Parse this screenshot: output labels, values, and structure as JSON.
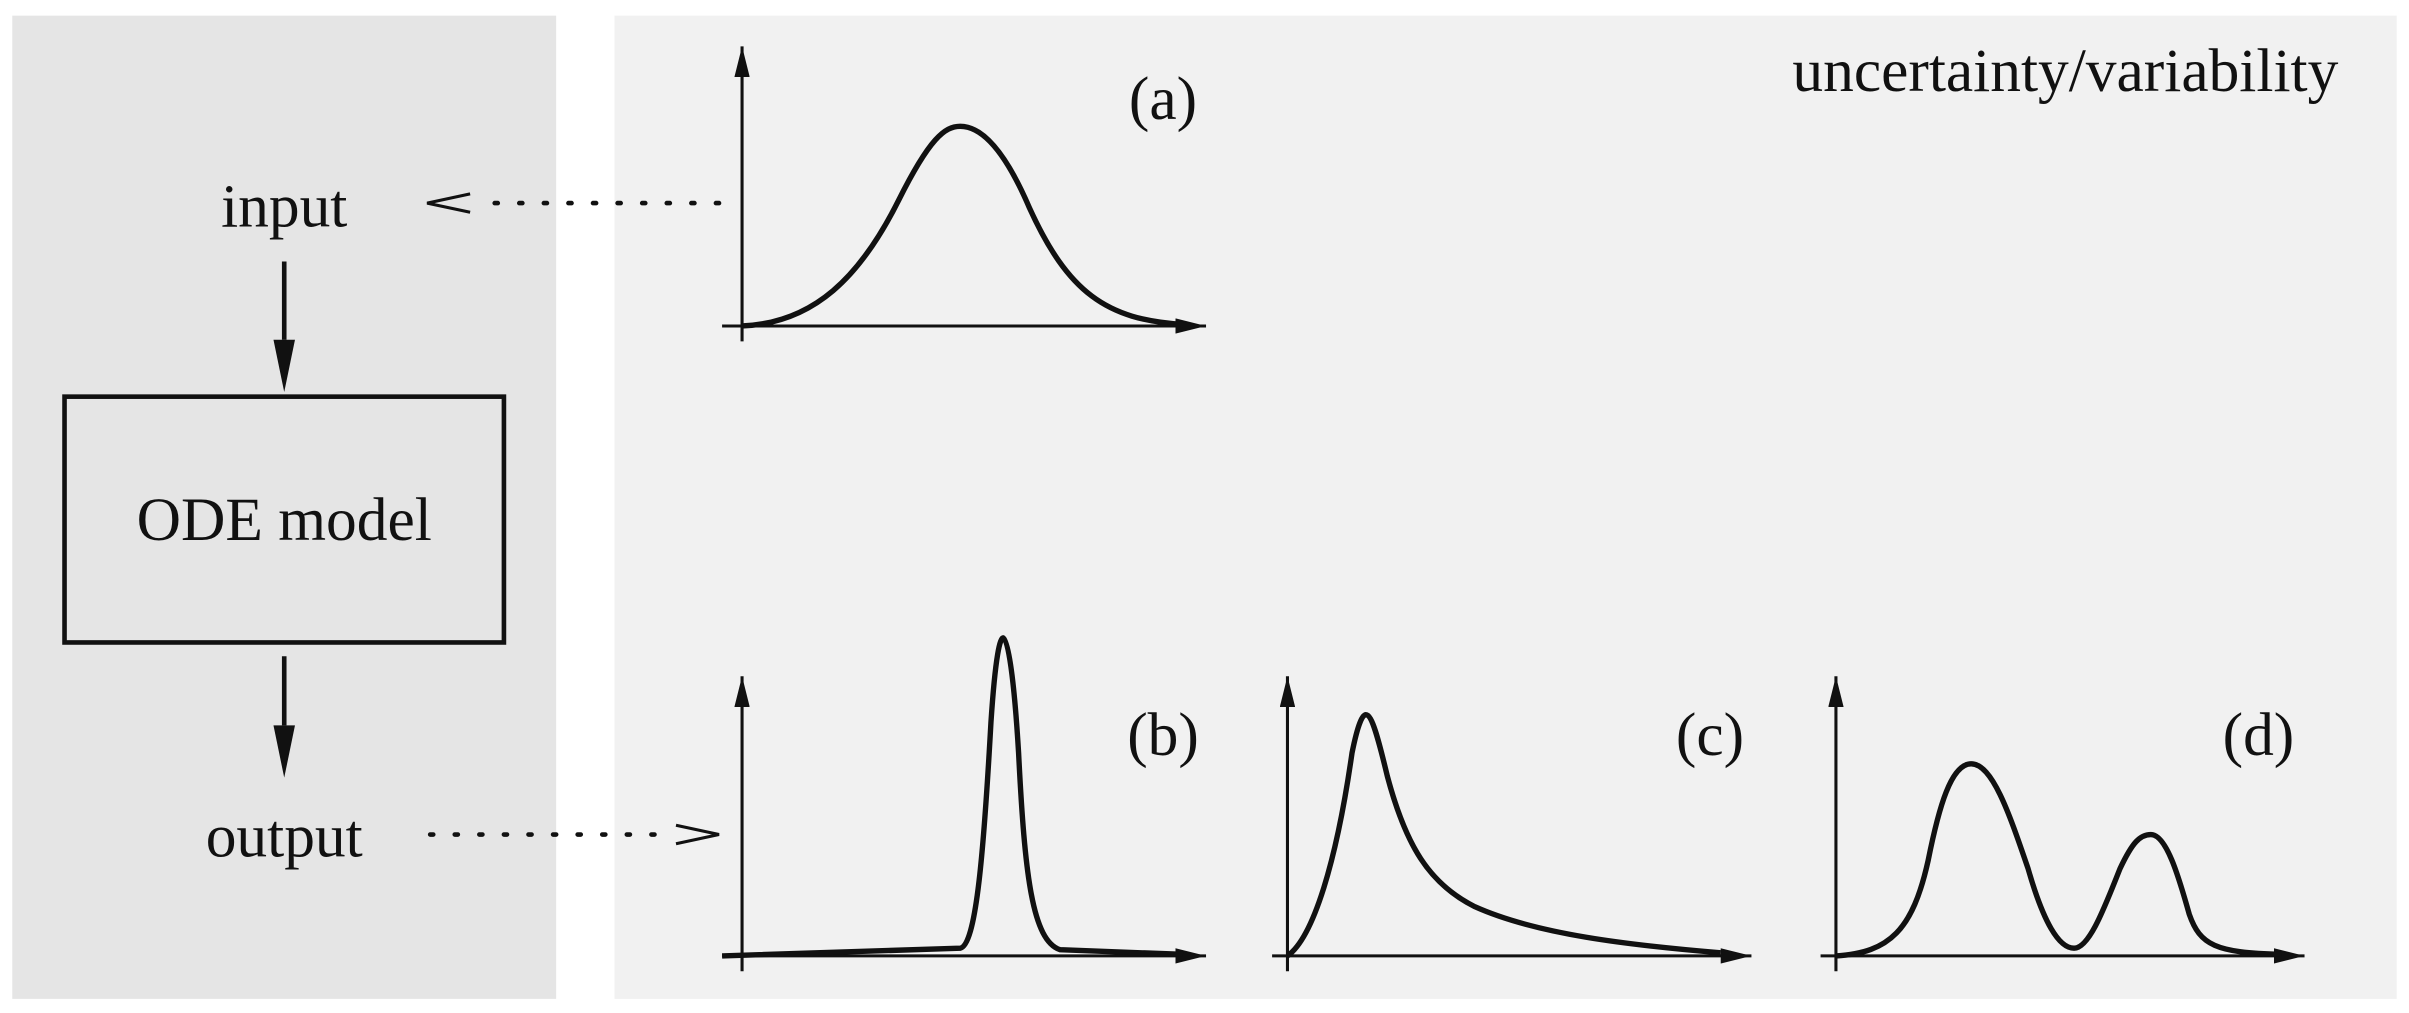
{
  "left": {
    "input": "input",
    "model": "ODE model",
    "output": "output"
  },
  "right": {
    "title": "uncertainty/variability",
    "panels": [
      "(a)",
      "(b)",
      "(c)",
      "(d)"
    ]
  }
}
